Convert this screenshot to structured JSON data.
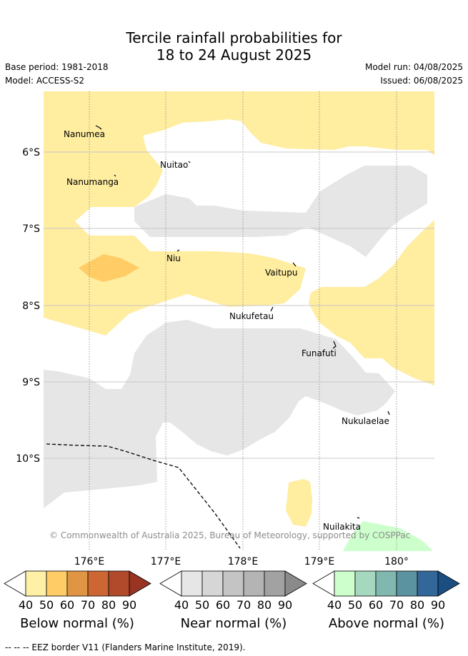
{
  "header": {
    "title_line1": "Tercile rainfall probabilities for",
    "title_line2": "18 to 24 August 2025",
    "base_period": "Base period: 1981-2018",
    "model": "Model: ACCESS-S2",
    "model_run": "Model run: 04/08/2025",
    "issued": "Issued: 06/08/2025"
  },
  "map": {
    "lat_labels": [
      "6°S",
      "7°S",
      "8°S",
      "9°S",
      "10°S"
    ],
    "lon_labels": [
      "176°E",
      "177°E",
      "178°E",
      "179°E",
      "180°"
    ],
    "places": [
      {
        "name": "Nanumea"
      },
      {
        "name": "Nuitao"
      },
      {
        "name": "Nanumanga"
      },
      {
        "name": "Niu"
      },
      {
        "name": "Vaitupu"
      },
      {
        "name": "Nukufetau"
      },
      {
        "name": "Funafuti"
      },
      {
        "name": "Nukulaelae"
      },
      {
        "name": "Nuilakita"
      }
    ],
    "copyright": "© Commonwealth of Australia 2025, Bureau of Meteorology, supported by COSPPac"
  },
  "colorbars": [
    {
      "label": "Below normal (%)",
      "ticks": [
        "40",
        "50",
        "60",
        "70",
        "80",
        "90"
      ],
      "colors": [
        "#fff0a8",
        "#ffcc66",
        "#e09545",
        "#cc6633",
        "#b04a2a",
        "#993322"
      ]
    },
    {
      "label": "Near normal (%)",
      "ticks": [
        "40",
        "50",
        "60",
        "70",
        "80",
        "90"
      ],
      "colors": [
        "#e6e6e6",
        "#d6d6d6",
        "#c4c4c4",
        "#b4b4b4",
        "#a2a2a2",
        "#8a8a8a"
      ]
    },
    {
      "label": "Above normal (%)",
      "ticks": [
        "40",
        "50",
        "60",
        "70",
        "80",
        "90"
      ],
      "colors": [
        "#ccffcc",
        "#a6d8bf",
        "#80b8b0",
        "#5b93a0",
        "#336699",
        "#1a4d80"
      ]
    }
  ],
  "footer": {
    "eez_legend": "--  --  -- EEZ border V11 (Flanders Marine Institute, 2019)."
  }
}
